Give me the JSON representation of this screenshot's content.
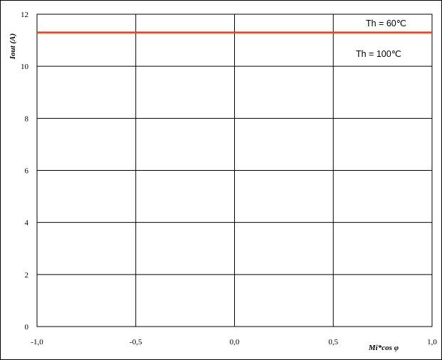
{
  "chart_data": {
    "type": "line",
    "title": "",
    "xlabel": "Mi*cos φ",
    "ylabel": "Iout (A)",
    "xlim": [
      -1.0,
      1.0
    ],
    "ylim": [
      0,
      12
    ],
    "x_ticks": [
      -1.0,
      -0.5,
      0.0,
      0.5,
      1.0
    ],
    "x_tick_labels": [
      "-1,0",
      "-0,5",
      "0,0",
      "0,5",
      "1,0"
    ],
    "y_ticks": [
      0,
      2,
      4,
      6,
      8,
      10,
      12
    ],
    "y_tick_labels": [
      "0",
      "2",
      "4",
      "6",
      "8",
      "10",
      "12"
    ],
    "grid": true,
    "series": [
      {
        "x": [
          -1.0,
          1.0
        ],
        "y": [
          11.3,
          11.3
        ],
        "color": "#e8401a"
      }
    ],
    "annotations": [
      "Th = 60℃",
      "Th = 100℃"
    ]
  }
}
